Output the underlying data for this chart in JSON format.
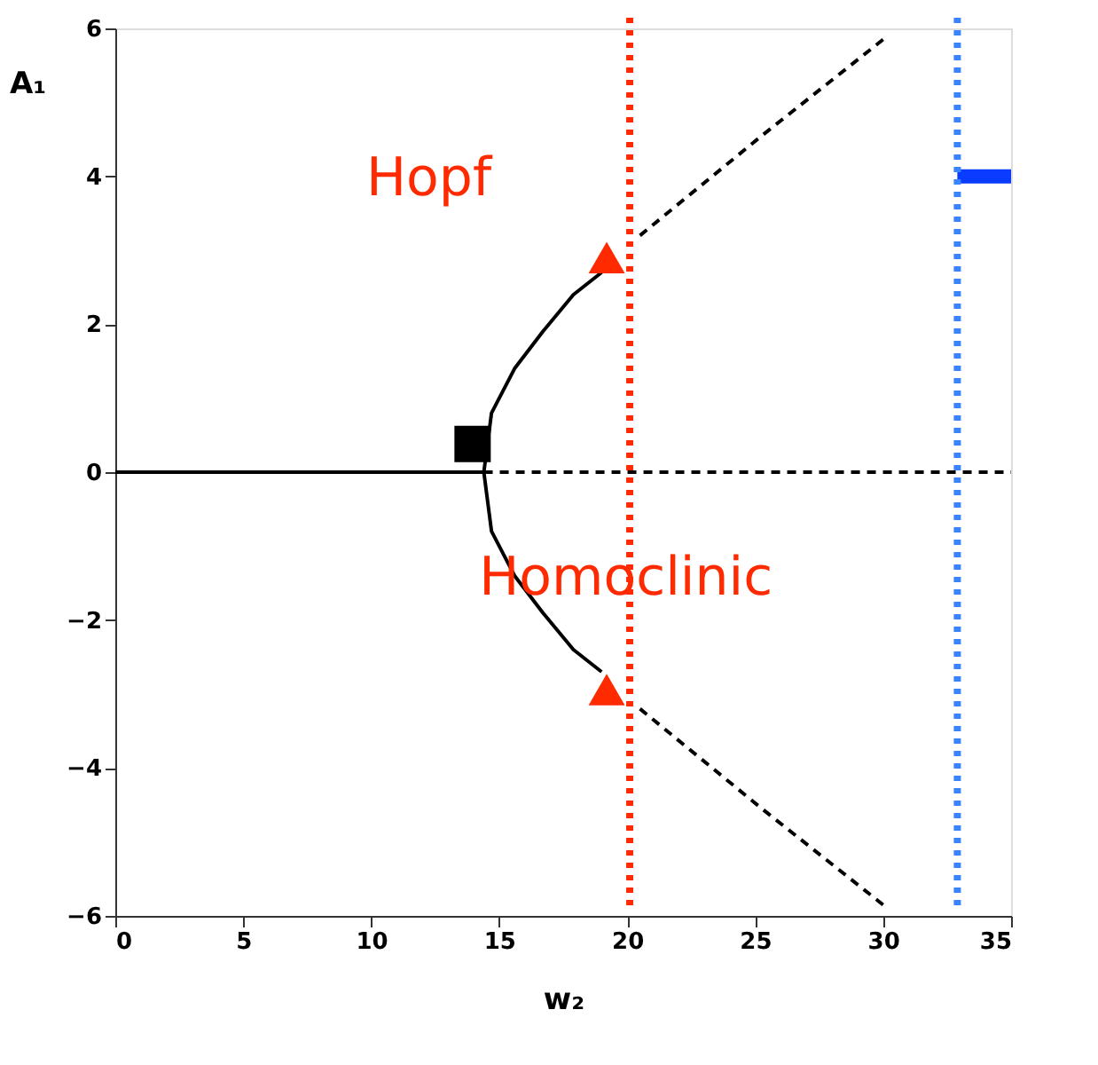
{
  "chart_data": {
    "type": "line",
    "xlabel": "w₂",
    "ylabel": "A₁",
    "xlim": [
      0,
      35
    ],
    "xticks": [
      0,
      5,
      10,
      15,
      20,
      25,
      30,
      35
    ],
    "ylim": [
      -6,
      6
    ],
    "yticks": [
      -6,
      -4,
      -2,
      0,
      2,
      4,
      6
    ],
    "grid": false,
    "series": [
      {
        "color": "#000000",
        "line_style": "solid",
        "x": [
          0,
          14.4
        ],
        "values": [
          0,
          0
        ]
      },
      {
        "color": "#000000",
        "line_style": "dashed",
        "x": [
          14.4,
          35
        ],
        "values": [
          0,
          0
        ]
      },
      {
        "color": "#000000",
        "line_style": "solid",
        "x": [
          19.0,
          17.9,
          16.7,
          15.6,
          14.7,
          14.4,
          14.7,
          15.6,
          16.7,
          17.9,
          19.0
        ],
        "values": [
          -2.7,
          -2.4,
          -1.9,
          -1.4,
          -0.8,
          0,
          0.8,
          1.4,
          1.9,
          2.4,
          2.7
        ]
      },
      {
        "color": "#000000",
        "line_style": "dashed",
        "x": [
          20.5,
          25.3,
          30
        ],
        "values": [
          3.2,
          4.56,
          5.85
        ]
      },
      {
        "color": "#000000",
        "line_style": "dashed",
        "x": [
          20.5,
          25.3,
          30
        ],
        "values": [
          -3.2,
          -4.56,
          -5.85
        ]
      },
      {
        "type": "scatter",
        "marker": "square",
        "color": "#000000",
        "x": [
          13.96
        ],
        "values": [
          0.38
        ]
      },
      {
        "type": "scatter",
        "marker": "triangle",
        "color": "#ff2a00",
        "x": [
          19.2,
          19.2
        ],
        "values": [
          2.9,
          -2.94
        ]
      },
      {
        "color": "#0a3cff",
        "line_style": "solid",
        "x": [
          32.9,
          35
        ],
        "values": [
          4.0,
          4.0
        ]
      }
    ],
    "ref_lines": [
      {
        "axis": "x",
        "value": 20.1,
        "color": "#ff2a00",
        "line_style": "dotted"
      },
      {
        "axis": "x",
        "value": 32.9,
        "color": "#3a85ff",
        "line_style": "dotted"
      }
    ],
    "annotations": [
      "Hopf",
      "Homoclinic"
    ]
  }
}
